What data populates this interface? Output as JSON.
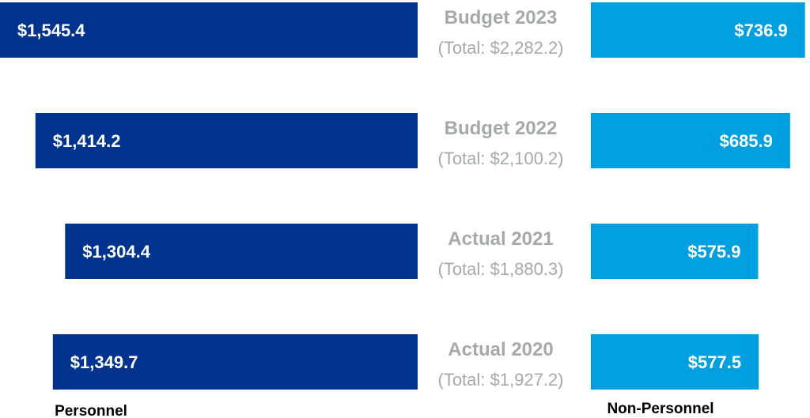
{
  "chart_data": {
    "type": "bar",
    "orientation": "horizontal-diverging",
    "categories": [
      "Budget 2023",
      "Budget 2022",
      "Actual 2021",
      "Actual 2020"
    ],
    "totals": [
      "(Total: $2,282.2)",
      "(Total: $2,100.2)",
      "(Total: $1,880.3)",
      "(Total: $1,927.2)"
    ],
    "series": [
      {
        "name": "Personnel",
        "side": "left",
        "color": "#00338d",
        "values": [
          1545.4,
          1414.2,
          1304.4,
          1349.7
        ],
        "labels": [
          "$1,545.4",
          "$1,414.2",
          "$1,304.4",
          "$1,349.7"
        ]
      },
      {
        "name": "Non-Personnel",
        "side": "right",
        "color": "#009fe0",
        "values": [
          736.9,
          685.9,
          575.9,
          577.5
        ],
        "labels": [
          "$736.9",
          "$685.9",
          "$575.9",
          "$577.5"
        ]
      }
    ],
    "title_color": "#a5a9ab",
    "grid": false
  }
}
